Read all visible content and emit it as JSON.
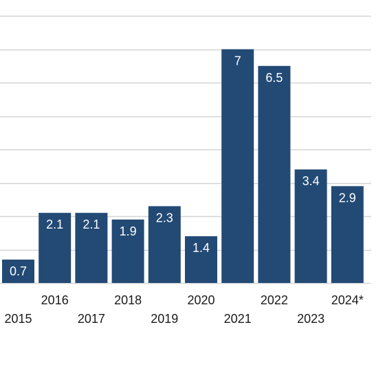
{
  "chart_data": {
    "type": "bar",
    "categories": [
      "2015",
      "2016",
      "2017",
      "2018",
      "2019",
      "2020",
      "2021",
      "2022",
      "2023",
      "2024*"
    ],
    "values": [
      0.7,
      2.1,
      2.1,
      1.9,
      2.3,
      1.4,
      7,
      6.5,
      3.4,
      2.9
    ],
    "data_labels": [
      "0.7",
      "2.1",
      "2.1",
      "1.9",
      "2.3",
      "1.4",
      "7",
      "6.5",
      "3.4",
      "2.9"
    ],
    "ylim": [
      0,
      8
    ],
    "grid": true,
    "colors": {
      "bar": "#234a75",
      "grid": "#d4d4d4",
      "label_inside": "#ffffff",
      "tick_text": "#1a1a1a"
    }
  }
}
